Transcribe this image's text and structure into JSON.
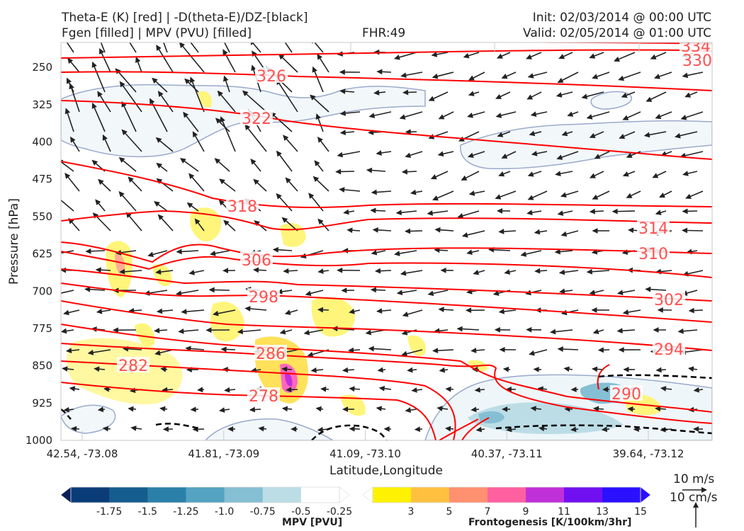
{
  "header": {
    "title_line1": "Theta-E (K) [red] | -D(theta-E)/DZ-[black]",
    "title_line2": "Fgen [filled] | MPV (PVU) [filled]",
    "fhr": "FHR:49",
    "init": "Init: 02/03/2014 @ 00:00 UTC",
    "valid": "Valid: 02/05/2014 @ 01:00 UTC"
  },
  "chart_data": {
    "type": "cross-section",
    "xlabel": "Latitude,Longitude",
    "ylabel": "Pressure [hPa]",
    "x_ticks": [
      "42.54, -73.08",
      "41.81, -73.09",
      "41.09, -73.10",
      "40.37, -73.11",
      "39.64, -73.12"
    ],
    "y_ticks": [
      "250",
      "325",
      "400",
      "475",
      "550",
      "625",
      "700",
      "775",
      "850",
      "925",
      "1000"
    ],
    "y_axis": "pressure",
    "ylim": [
      1000,
      200
    ],
    "theta_e_contours": [
      {
        "label": "334",
        "level": 334
      },
      {
        "label": "330",
        "level": 330
      },
      {
        "label": "326",
        "level": 326
      },
      {
        "label": "322",
        "level": 322
      },
      {
        "label": "318",
        "level": 318
      },
      {
        "label": "314",
        "level": 314
      },
      {
        "label": "310",
        "level": 310
      },
      {
        "label": "306",
        "level": 306
      },
      {
        "label": "302",
        "level": 302
      },
      {
        "label": "298",
        "level": 298
      },
      {
        "label": "294",
        "level": 294
      },
      {
        "label": "290",
        "level": 290
      },
      {
        "label": "286",
        "level": 286
      },
      {
        "label": "282",
        "level": 282
      },
      {
        "label": "278",
        "level": 278
      }
    ],
    "colors": {
      "theta_e": "#ff0000",
      "theta_e_label": "#ff5050",
      "stability": "#000000",
      "mpv_contour": "#9aaacc"
    },
    "mpv_colorbar": {
      "title": "MPV [PVU]",
      "ticks": [
        "-1.75",
        "-1.5",
        "-1.25",
        "-1.0",
        "-0.75",
        "-0.5",
        "-0.25"
      ],
      "colors": [
        "#08205a",
        "#0a3d78",
        "#155d8e",
        "#2a80a8",
        "#54a3c2",
        "#85bfd4",
        "#bcdde6",
        "#ffffff"
      ]
    },
    "fgen_colorbar": {
      "title": "Frontogenesis [K/100km/3hr]",
      "ticks": [
        "3",
        "5",
        "7",
        "9",
        "11",
        "13",
        "15"
      ],
      "colors": [
        "#ffffff",
        "#fff200",
        "#ffc040",
        "#ff9070",
        "#ff60a0",
        "#c030d8",
        "#7010f0",
        "#2a10ff"
      ]
    },
    "wind_scale": {
      "horizontal": "10 m/s",
      "vertical": "10 cm/s"
    }
  }
}
